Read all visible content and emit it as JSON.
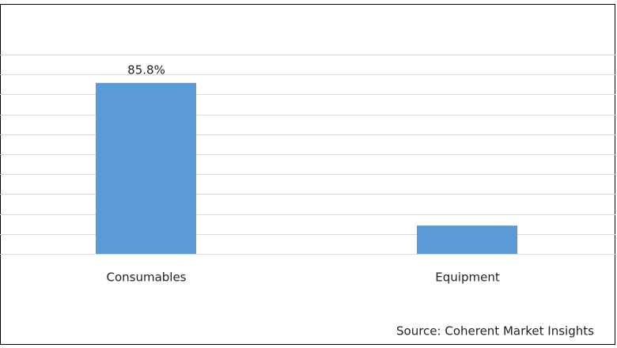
{
  "chart_data": {
    "type": "bar",
    "categories": [
      "Consumables",
      "Equipment"
    ],
    "values": [
      85.8,
      14.2
    ],
    "value_labels": [
      "85.8%",
      null
    ],
    "color": "#5b9bd5",
    "ylim": [
      0,
      100
    ],
    "yticks": [
      0,
      10,
      20,
      30,
      40,
      50,
      60,
      70,
      80,
      90,
      100
    ],
    "grid": true,
    "source": "Source: Coherent Market Insights"
  }
}
